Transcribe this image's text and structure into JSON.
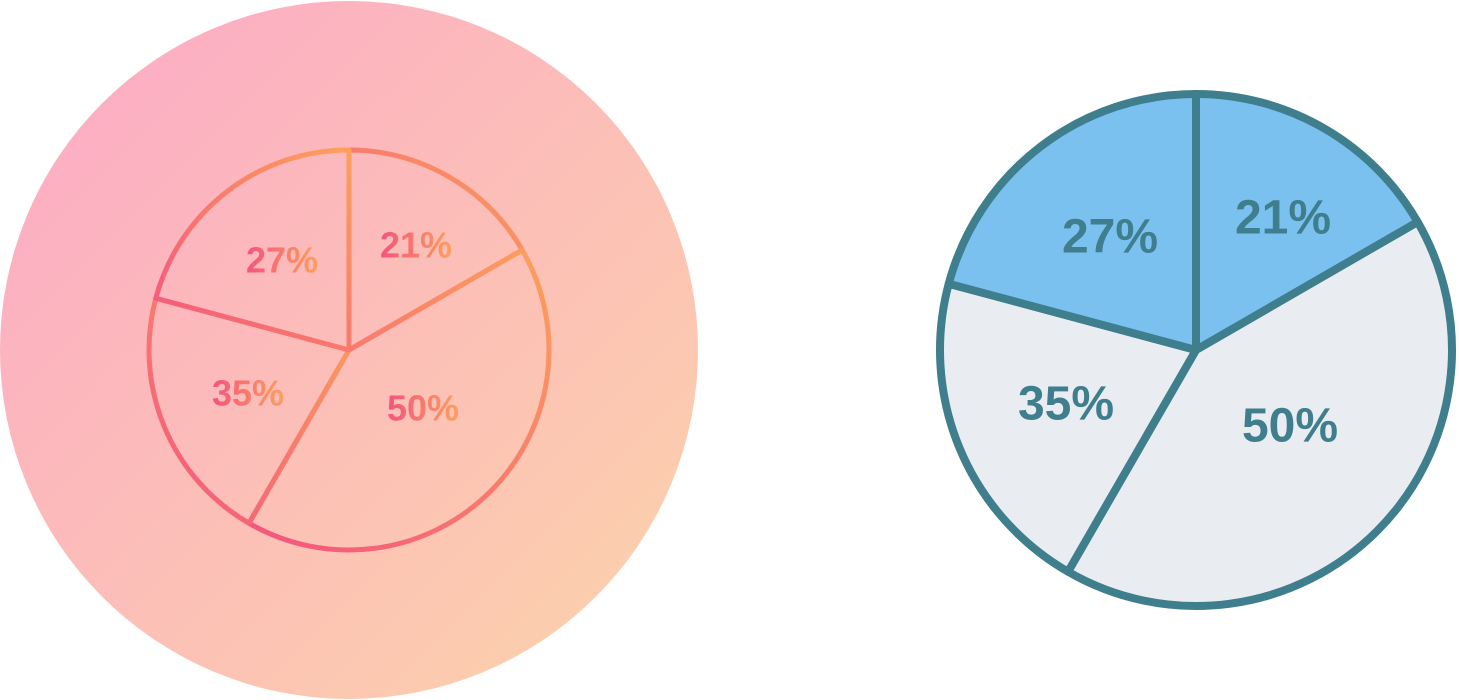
{
  "chart_data": [
    {
      "type": "pie",
      "style": "outline on gradient circle",
      "slices": [
        {
          "label": "21%",
          "value": 21
        },
        {
          "label": "50%",
          "value": 50
        },
        {
          "label": "35%",
          "value": 35
        },
        {
          "label": "27%",
          "value": 27
        }
      ],
      "colors": {
        "background_start": "#fca9c7",
        "background_end": "#fcd3a9",
        "stroke_start": "#fca05c",
        "stroke_end": "#f4547f"
      }
    },
    {
      "type": "pie",
      "style": "filled flat",
      "slices": [
        {
          "label": "21%",
          "value": 21,
          "color": "#7bc1f0"
        },
        {
          "label": "50%",
          "value": 50,
          "color": "#e9ecf0"
        },
        {
          "label": "35%",
          "value": 35,
          "color": "#e9ecf0"
        },
        {
          "label": "27%",
          "value": 27,
          "color": "#7bc1f0"
        }
      ],
      "colors": {
        "stroke": "#3f7e8c",
        "text": "#3f7e8c"
      }
    }
  ]
}
